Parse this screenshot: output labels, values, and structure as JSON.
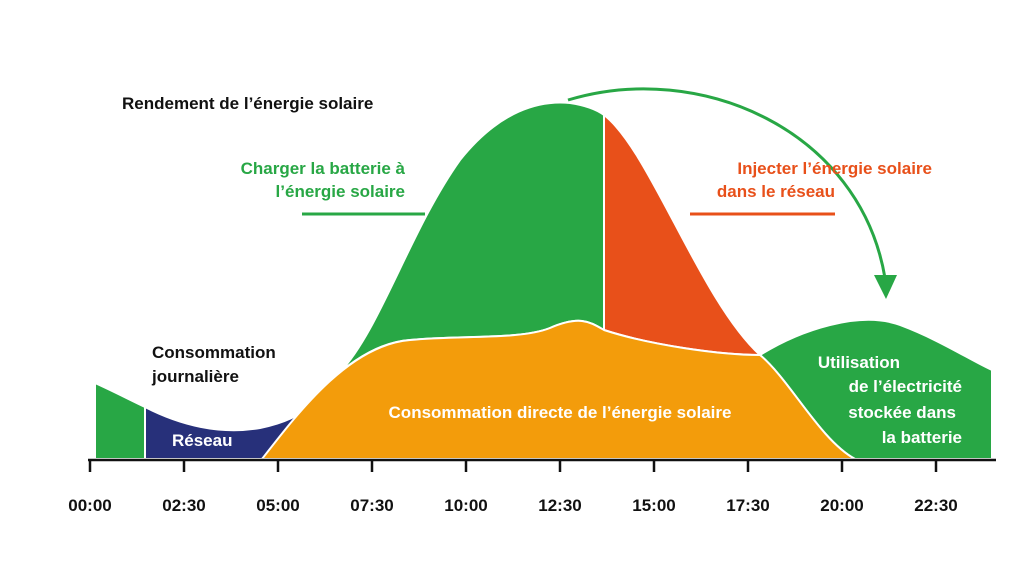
{
  "header": {
    "title": "Rendement de l’énergie solaire"
  },
  "labels": {
    "charge": [
      "Charger la batterie à",
      "l’énergie solaire"
    ],
    "inject": [
      "Injecter l’énergie solaire",
      "dans le réseau"
    ],
    "consumption": [
      "Consommation",
      "journalière"
    ],
    "grid": "Réseau",
    "direct": "Consommation directe de l’énergie solaire",
    "storage": [
      "Utilisation",
      "de l’électricité",
      "stockée dans",
      "la batterie"
    ]
  },
  "axis": {
    "times": [
      "00:00",
      "02:30",
      "05:00",
      "07:30",
      "10:00",
      "12:30",
      "15:00",
      "17:30",
      "20:00",
      "22:30"
    ]
  }
}
